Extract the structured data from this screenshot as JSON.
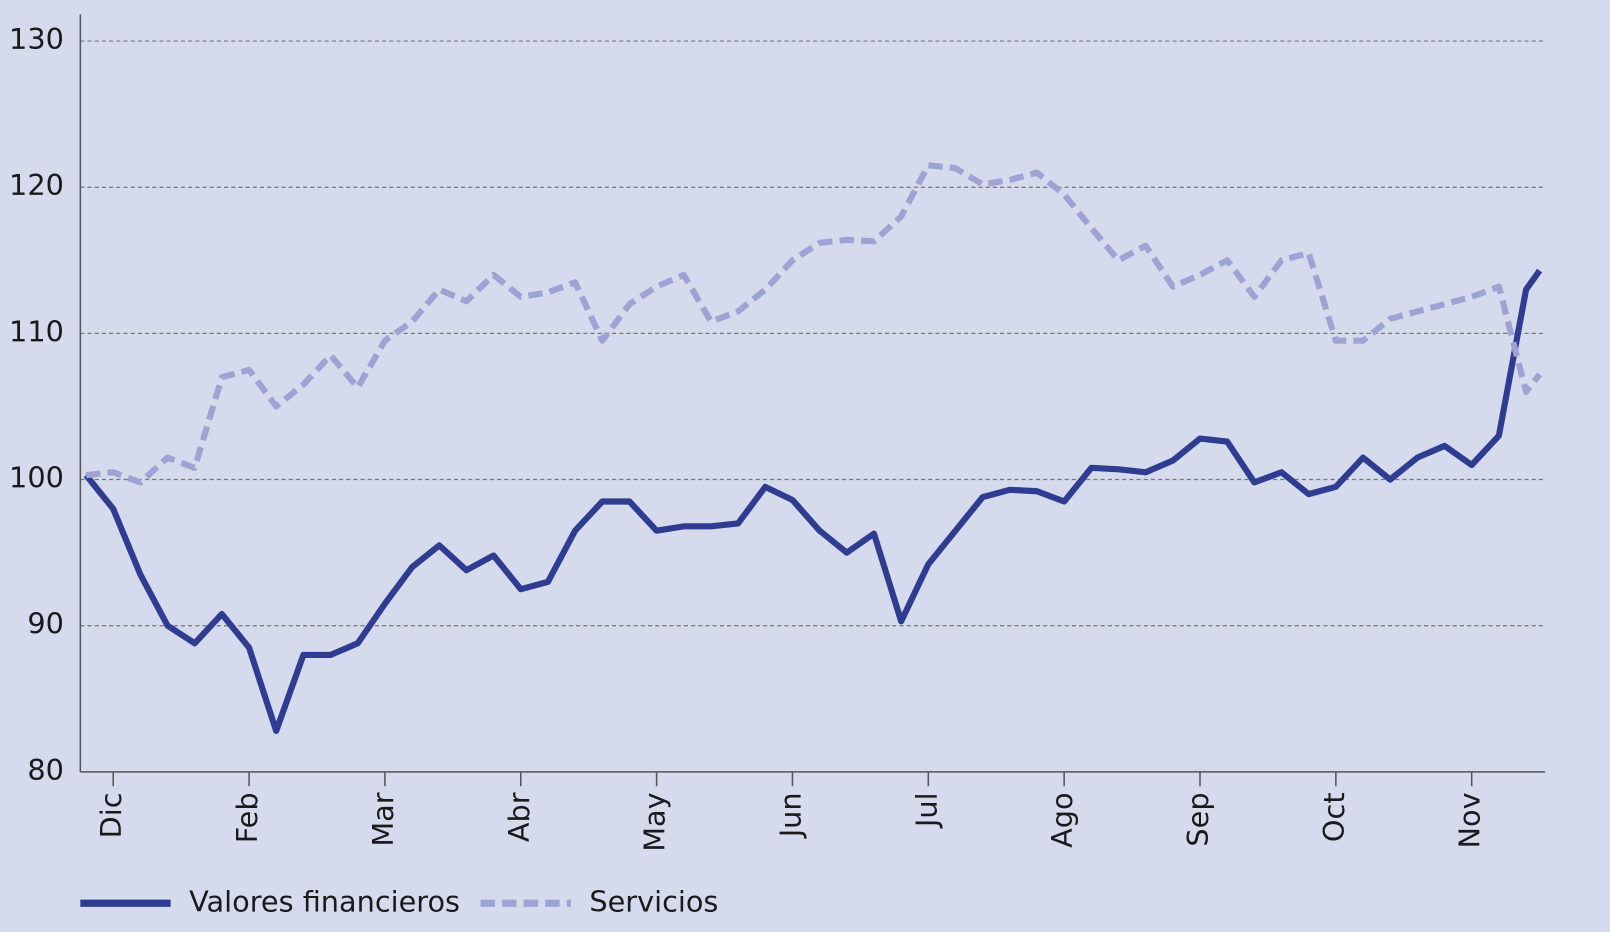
{
  "chart_data": {
    "type": "line",
    "x": [
      -0.2,
      0,
      0.2,
      0.4,
      0.6,
      0.8,
      1.0,
      1.2,
      1.4,
      1.6,
      1.8,
      2.0,
      2.2,
      2.4,
      2.6,
      2.8,
      3.0,
      3.2,
      3.4,
      3.6,
      3.8,
      4.0,
      4.2,
      4.4,
      4.6,
      4.8,
      5.0,
      5.2,
      5.4,
      5.6,
      5.8,
      6.0,
      6.2,
      6.4,
      6.6,
      6.8,
      7.0,
      7.2,
      7.4,
      7.6,
      7.8,
      8.0,
      8.2,
      8.4,
      8.6,
      8.8,
      9.0,
      9.2,
      9.4,
      9.6,
      9.8,
      10.0,
      10.2,
      10.4,
      10.5
    ],
    "series": [
      {
        "name": "Valores financieros",
        "color": "#2e3d91",
        "dashed": false,
        "values": [
          100.3,
          98,
          93.5,
          90,
          88.8,
          90.8,
          88.5,
          82.8,
          88,
          88,
          88.8,
          91.5,
          94,
          95.5,
          93.8,
          94.8,
          92.5,
          93,
          96.5,
          98.5,
          98.5,
          96.5,
          96.8,
          96.8,
          97,
          99.5,
          98.6,
          96.5,
          95,
          96.3,
          90.3,
          94.2,
          96.5,
          98.8,
          99.3,
          99.2,
          98.5,
          100.8,
          100.7,
          100.5,
          101.3,
          102.8,
          102.6,
          99.8,
          100.5,
          99,
          99.5,
          101.5,
          100,
          101.5,
          102.3,
          101,
          103,
          113,
          114.3
        ]
      },
      {
        "name": "Servicios",
        "color": "#9ea3d4",
        "dashed": true,
        "values": [
          100.3,
          100.5,
          99.8,
          101.5,
          100.8,
          107,
          107.5,
          105,
          106.5,
          108.5,
          106.3,
          109.5,
          110.8,
          113,
          112.2,
          114,
          112.5,
          112.8,
          113.5,
          109.5,
          112,
          113.2,
          114,
          110.8,
          111.5,
          113,
          115,
          116.2,
          116.4,
          116.3,
          118,
          121.5,
          121.3,
          120.2,
          120.5,
          121,
          119.5,
          117.2,
          115,
          116,
          113.2,
          114,
          115,
          112.5,
          115,
          115.5,
          109.5,
          109.5,
          111,
          111.5,
          112,
          112.5,
          113.2,
          106,
          107.2
        ]
      }
    ],
    "xlim": [
      -0.242,
      10.54
    ],
    "xticks": [
      {
        "value": 0,
        "label": "Dic"
      },
      {
        "value": 1,
        "label": "Feb"
      },
      {
        "value": 2,
        "label": "Mar"
      },
      {
        "value": 3,
        "label": "Abr"
      },
      {
        "value": 4,
        "label": "May"
      },
      {
        "value": 5,
        "label": "Jun"
      },
      {
        "value": 6,
        "label": "Jul"
      },
      {
        "value": 7,
        "label": "Ago"
      },
      {
        "value": 8,
        "label": "Sep"
      },
      {
        "value": 9,
        "label": "Oct"
      },
      {
        "value": 10,
        "label": "Nov"
      }
    ],
    "ylim": [
      80,
      130
    ],
    "yticks": [
      80,
      90,
      100,
      110,
      120,
      130
    ],
    "grid": true,
    "legend": "bottom-left"
  }
}
